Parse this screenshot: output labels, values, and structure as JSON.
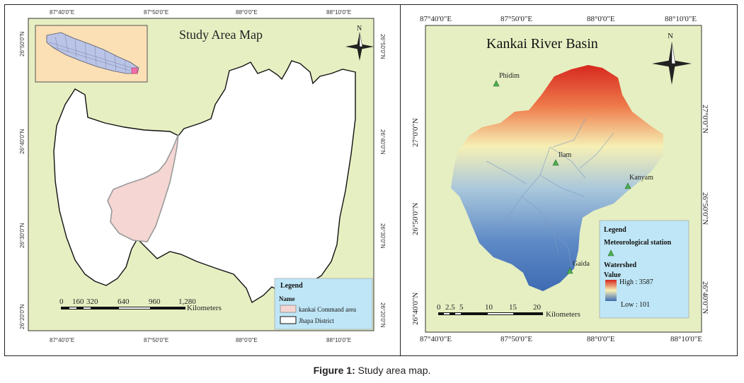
{
  "left_map": {
    "title": "Study Area Map",
    "north": "N",
    "top_ticks": [
      "87°40'0\"E",
      "87°50'0\"E",
      "88°0'0\"E",
      "88°10'0\"E"
    ],
    "bottom_ticks": [
      "87°40'0\"E",
      "87°50'0\"E",
      "88°0'0\"E",
      "88°10'0\"E"
    ],
    "side_ticks": [
      "26°50'0\"N",
      "26°40'0\"N",
      "26°30'0\"N",
      "26°20'0\"N"
    ],
    "scale_numbers": [
      "0",
      "160",
      "320",
      "640",
      "960",
      "1,280"
    ],
    "scale_unit": "Kilometers",
    "legend": {
      "title": "Legend",
      "name_header": "Name",
      "items": [
        "kankai Command area",
        "Jhapa District"
      ]
    },
    "colors": {
      "background": "#e6efc2",
      "district": "#ffffff",
      "command_area": "#f5d6d3"
    }
  },
  "right_map": {
    "title": "Kankai River Basin",
    "north": "N",
    "top_ticks": [
      "87°40'0\"E",
      "87°50'0\"E",
      "88°0'0\"E",
      "88°10'0\"E"
    ],
    "bottom_ticks": [
      "87°40'0\"E",
      "87°50'0\"E",
      "88°0'0\"E",
      "88°10'0\"E"
    ],
    "side_ticks": [
      "27°0'0\"N",
      "26°50'0\"N",
      "26°40'0\"N"
    ],
    "stations": [
      "Phidim",
      "Ilam",
      "Kanyam",
      "Gaida"
    ],
    "scale_numbers": [
      "0",
      "2.5",
      "5",
      "10",
      "15",
      "20"
    ],
    "scale_unit": "Kilometers",
    "legend": {
      "title": "Legend",
      "station_header": "Meteorological station",
      "watershed_header": "Watershed",
      "value_header": "Value",
      "high": "High : 3587",
      "low": "Low : 101"
    },
    "colors": {
      "background": "#e6efc2",
      "high": "#d7281f",
      "mid": "#f6f0b5",
      "low": "#3e6bb3",
      "legend_bg": "#bfe6f6"
    }
  },
  "caption": {
    "label": "Figure 1:",
    "text": "Study area map."
  }
}
